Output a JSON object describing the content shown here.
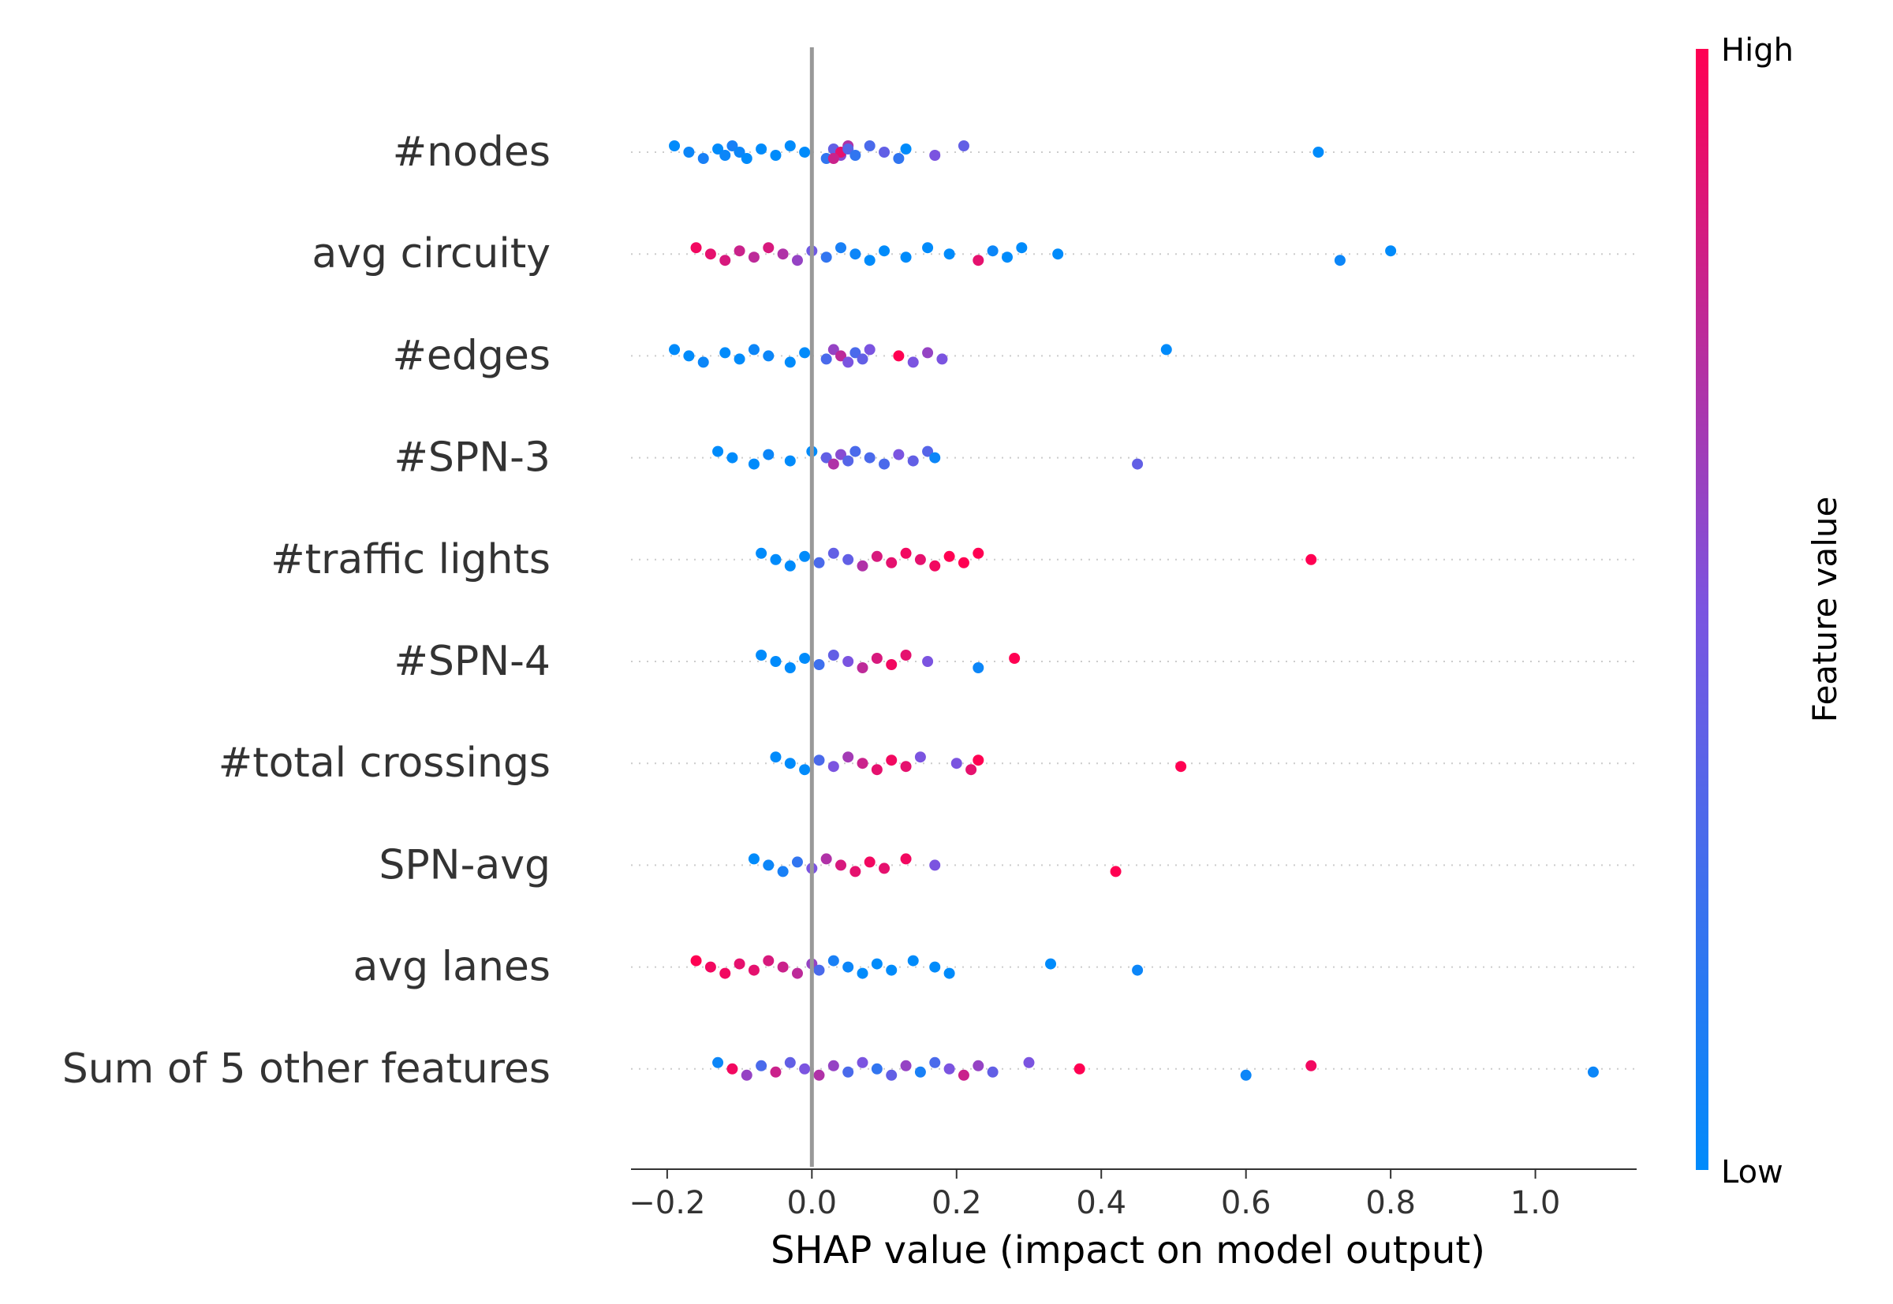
{
  "chart_data": {
    "type": "scatter",
    "subtype": "shap-beeswarm",
    "title": "",
    "xlabel": "SHAP value (impact on model output)",
    "ylabel": "",
    "xlim": [
      -0.25,
      1.14
    ],
    "xticks": [
      -0.2,
      0.0,
      0.2,
      0.4,
      0.6,
      0.8,
      1.0
    ],
    "xtick_labels": [
      "−0.2",
      "0.0",
      "0.2",
      "0.4",
      "0.6",
      "0.8",
      "1.0"
    ],
    "zero_line": 0.0,
    "grid": false,
    "colorbar": {
      "label": "Feature value",
      "high_label": "High",
      "low_label": "Low",
      "high_color": "#ff0052",
      "mid_color": "#7b54e0",
      "low_color": "#008bfb",
      "placement": "right"
    },
    "features": [
      {
        "name": "#nodes",
        "points": [
          [
            -0.19,
            0
          ],
          [
            -0.17,
            0.05
          ],
          [
            -0.15,
            0.1
          ],
          [
            -0.13,
            0
          ],
          [
            -0.12,
            0.05
          ],
          [
            -0.11,
            0.1
          ],
          [
            -0.1,
            0.05
          ],
          [
            -0.09,
            0
          ],
          [
            -0.07,
            0
          ],
          [
            -0.05,
            0
          ],
          [
            -0.03,
            0
          ],
          [
            -0.01,
            0
          ],
          [
            0.02,
            0.2
          ],
          [
            0.03,
            0.4
          ],
          [
            0.04,
            0.55
          ],
          [
            0.05,
            0.7
          ],
          [
            0.04,
            0.9
          ],
          [
            0.03,
            0.8
          ],
          [
            0.05,
            0.35
          ],
          [
            0.06,
            0.2
          ],
          [
            0.08,
            0.3
          ],
          [
            0.1,
            0.4
          ],
          [
            0.12,
            0.2
          ],
          [
            0.13,
            0
          ],
          [
            0.17,
            0.5
          ],
          [
            0.21,
            0.4
          ],
          [
            0.7,
            0
          ]
        ]
      },
      {
        "name": "avg circuity",
        "points": [
          [
            -0.16,
            0.95
          ],
          [
            -0.14,
            0.9
          ],
          [
            -0.12,
            0.85
          ],
          [
            -0.1,
            0.8
          ],
          [
            -0.08,
            0.75
          ],
          [
            -0.06,
            0.85
          ],
          [
            -0.04,
            0.7
          ],
          [
            -0.02,
            0.6
          ],
          [
            0.0,
            0.45
          ],
          [
            0.02,
            0.2
          ],
          [
            0.04,
            0.1
          ],
          [
            0.06,
            0.05
          ],
          [
            0.08,
            0.0
          ],
          [
            0.1,
            0.0
          ],
          [
            0.13,
            0.0
          ],
          [
            0.16,
            0.0
          ],
          [
            0.19,
            0.0
          ],
          [
            0.23,
            0.9
          ],
          [
            0.25,
            0.05
          ],
          [
            0.27,
            0.0
          ],
          [
            0.29,
            0.0
          ],
          [
            0.34,
            0.0
          ],
          [
            0.73,
            0.05
          ],
          [
            0.8,
            0.0
          ]
        ]
      },
      {
        "name": "#edges",
        "points": [
          [
            -0.19,
            0
          ],
          [
            -0.17,
            0
          ],
          [
            -0.15,
            0.05
          ],
          [
            -0.12,
            0
          ],
          [
            -0.1,
            0
          ],
          [
            -0.08,
            0.05
          ],
          [
            -0.06,
            0.05
          ],
          [
            -0.03,
            0
          ],
          [
            -0.01,
            0
          ],
          [
            0.02,
            0.3
          ],
          [
            0.03,
            0.6
          ],
          [
            0.04,
            0.75
          ],
          [
            0.05,
            0.5
          ],
          [
            0.06,
            0.3
          ],
          [
            0.07,
            0.4
          ],
          [
            0.08,
            0.5
          ],
          [
            0.12,
            1.0
          ],
          [
            0.14,
            0.5
          ],
          [
            0.16,
            0.6
          ],
          [
            0.18,
            0.5
          ],
          [
            0.49,
            0
          ]
        ]
      },
      {
        "name": "#SPN-3",
        "points": [
          [
            -0.13,
            0
          ],
          [
            -0.11,
            0
          ],
          [
            -0.08,
            0
          ],
          [
            -0.06,
            0.05
          ],
          [
            -0.03,
            0
          ],
          [
            0.0,
            0
          ],
          [
            0.02,
            0.4
          ],
          [
            0.03,
            0.7
          ],
          [
            0.04,
            0.55
          ],
          [
            0.05,
            0.35
          ],
          [
            0.06,
            0.3
          ],
          [
            0.08,
            0.3
          ],
          [
            0.1,
            0.3
          ],
          [
            0.12,
            0.5
          ],
          [
            0.14,
            0.4
          ],
          [
            0.16,
            0.35
          ],
          [
            0.17,
            0.05
          ],
          [
            0.45,
            0.4
          ]
        ]
      },
      {
        "name": "#traffic lights",
        "points": [
          [
            -0.07,
            0
          ],
          [
            -0.05,
            0
          ],
          [
            -0.03,
            0
          ],
          [
            -0.01,
            0
          ],
          [
            0.01,
            0.3
          ],
          [
            0.03,
            0.4
          ],
          [
            0.05,
            0.4
          ],
          [
            0.07,
            0.7
          ],
          [
            0.09,
            0.85
          ],
          [
            0.11,
            0.9
          ],
          [
            0.13,
            0.95
          ],
          [
            0.15,
            0.9
          ],
          [
            0.17,
            0.95
          ],
          [
            0.19,
            1.0
          ],
          [
            0.21,
            1.0
          ],
          [
            0.23,
            1.0
          ],
          [
            0.69,
            1.0
          ]
        ]
      },
      {
        "name": "#SPN-4",
        "points": [
          [
            -0.07,
            0
          ],
          [
            -0.05,
            0
          ],
          [
            -0.03,
            0
          ],
          [
            -0.01,
            0
          ],
          [
            0.01,
            0.25
          ],
          [
            0.03,
            0.4
          ],
          [
            0.05,
            0.5
          ],
          [
            0.07,
            0.75
          ],
          [
            0.09,
            0.85
          ],
          [
            0.11,
            0.95
          ],
          [
            0.13,
            0.9
          ],
          [
            0.16,
            0.5
          ],
          [
            0.23,
            0.05
          ],
          [
            0.28,
            1.0
          ]
        ]
      },
      {
        "name": "#total crossings",
        "points": [
          [
            -0.05,
            0
          ],
          [
            -0.03,
            0
          ],
          [
            -0.01,
            0
          ],
          [
            0.01,
            0.3
          ],
          [
            0.03,
            0.5
          ],
          [
            0.05,
            0.65
          ],
          [
            0.07,
            0.8
          ],
          [
            0.09,
            0.9
          ],
          [
            0.11,
            0.95
          ],
          [
            0.13,
            0.9
          ],
          [
            0.15,
            0.5
          ],
          [
            0.2,
            0.5
          ],
          [
            0.22,
            0.9
          ],
          [
            0.23,
            1.0
          ],
          [
            0.51,
            1.0
          ]
        ]
      },
      {
        "name": "SPN-avg",
        "points": [
          [
            -0.08,
            0
          ],
          [
            -0.06,
            0.05
          ],
          [
            -0.04,
            0.1
          ],
          [
            -0.02,
            0.2
          ],
          [
            0.0,
            0.5
          ],
          [
            0.02,
            0.7
          ],
          [
            0.04,
            0.85
          ],
          [
            0.06,
            0.9
          ],
          [
            0.08,
            0.95
          ],
          [
            0.1,
            0.9
          ],
          [
            0.13,
            0.95
          ],
          [
            0.17,
            0.5
          ],
          [
            0.42,
            1.0
          ]
        ]
      },
      {
        "name": "avg lanes",
        "points": [
          [
            -0.16,
            1.0
          ],
          [
            -0.14,
            0.95
          ],
          [
            -0.12,
            0.95
          ],
          [
            -0.1,
            0.9
          ],
          [
            -0.08,
            0.9
          ],
          [
            -0.06,
            0.85
          ],
          [
            -0.04,
            0.8
          ],
          [
            -0.02,
            0.75
          ],
          [
            0.0,
            0.6
          ],
          [
            0.01,
            0.3
          ],
          [
            0.03,
            0.1
          ],
          [
            0.05,
            0.05
          ],
          [
            0.07,
            0.0
          ],
          [
            0.09,
            0.0
          ],
          [
            0.11,
            0.0
          ],
          [
            0.14,
            0.0
          ],
          [
            0.17,
            0.0
          ],
          [
            0.19,
            0.0
          ],
          [
            0.33,
            0.0
          ],
          [
            0.45,
            0.05
          ]
        ]
      },
      {
        "name": "Sum of 5 other features",
        "points": [
          [
            -0.13,
            0.05
          ],
          [
            -0.11,
            0.95
          ],
          [
            -0.09,
            0.6
          ],
          [
            -0.07,
            0.3
          ],
          [
            -0.05,
            0.8
          ],
          [
            -0.03,
            0.4
          ],
          [
            -0.01,
            0.5
          ],
          [
            0.01,
            0.7
          ],
          [
            0.03,
            0.6
          ],
          [
            0.05,
            0.3
          ],
          [
            0.07,
            0.5
          ],
          [
            0.09,
            0.2
          ],
          [
            0.11,
            0.4
          ],
          [
            0.13,
            0.6
          ],
          [
            0.15,
            0.1
          ],
          [
            0.17,
            0.3
          ],
          [
            0.19,
            0.5
          ],
          [
            0.21,
            0.8
          ],
          [
            0.23,
            0.6
          ],
          [
            0.25,
            0.4
          ],
          [
            0.3,
            0.5
          ],
          [
            0.37,
            1.0
          ],
          [
            0.6,
            0.05
          ],
          [
            0.69,
            0.95
          ],
          [
            1.08,
            0.05
          ]
        ]
      }
    ]
  }
}
